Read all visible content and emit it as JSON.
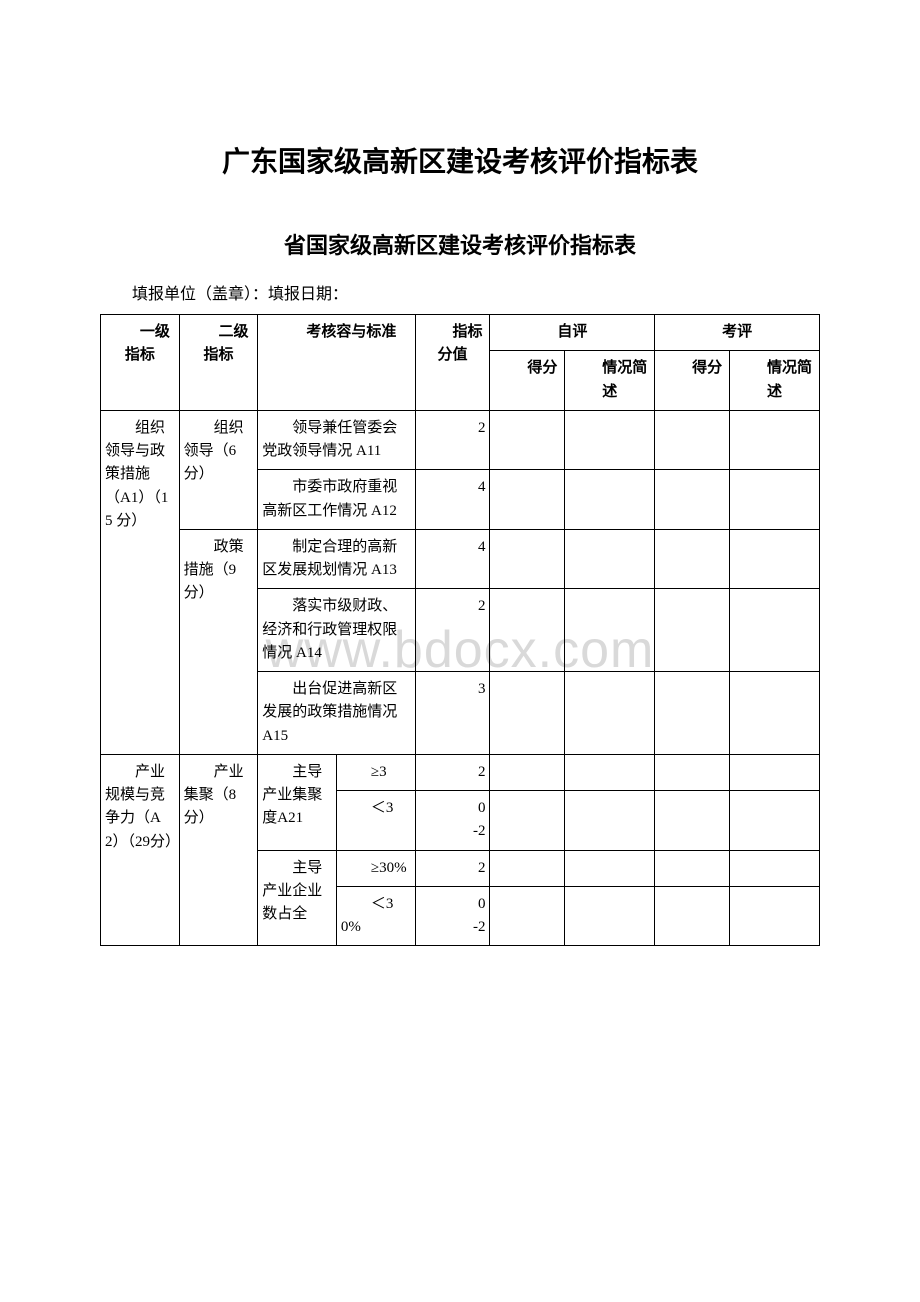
{
  "title_main": "广东国家级高新区建设考核评价指标表",
  "title_sub": "省国家级高新区建设考核评价指标表",
  "fill_info": "填报单位（盖章）：填报日期：",
  "watermark": "www.bdocx.com",
  "colors": {
    "text": "#000000",
    "border": "#000000",
    "background": "#ffffff",
    "watermark": "#d9d9d9"
  },
  "col_widths_pct": [
    10,
    10,
    10,
    10,
    10,
    10,
    10,
    10,
    10
  ],
  "header": {
    "c1": "　　一级指标",
    "c2": "　　二级指标",
    "c3": "　　考核容与标准",
    "c4": "　　指标分值",
    "self_eval": "自评",
    "review": "考评",
    "score": "　　得分",
    "desc": "　　情况简述"
  },
  "rows": [
    {
      "l1": "　　组织领导与政策措施（A1）（15 分）",
      "l1_rowspan": 5,
      "l2": "　　组织领导（6分）",
      "l2_rowspan": 2,
      "l3": "　　领导兼任管委会党政领导情况 A11",
      "l3_colspan": 2,
      "score": "2"
    },
    {
      "l3": "　　市委市政府重视高新区工作情况 A12",
      "l3_colspan": 2,
      "score": "4"
    },
    {
      "l2": "　　政策措施（9分）",
      "l2_rowspan": 3,
      "l3": "　　制定合理的高新区发展规划情况 A13",
      "l3_colspan": 2,
      "score": "4"
    },
    {
      "l3": "　　落实市级财政、经济和行政管理权限情况 A14",
      "l3_colspan": 2,
      "score": "2"
    },
    {
      "l3": "　　出台促进高新区发展的政策措施情况 A15",
      "l3_colspan": 2,
      "score": "3"
    },
    {
      "l1": "　　产业规模与竞争力（A2）（29分）",
      "l1_rowspan": 4,
      "l2": "　　产业集聚（8分）",
      "l2_rowspan": 4,
      "l3": "　　主导产业集聚度A21",
      "l3_rowspan": 2,
      "cond": "　　≥3",
      "score": "2"
    },
    {
      "cond": "　　＜3",
      "score": "0\n-2"
    },
    {
      "l3": "　　主导产业企业数占全",
      "l3_rowspan": 2,
      "cond": "　　≥30%",
      "score": "2"
    },
    {
      "cond": "　　＜30%",
      "score": "0\n-2"
    }
  ]
}
